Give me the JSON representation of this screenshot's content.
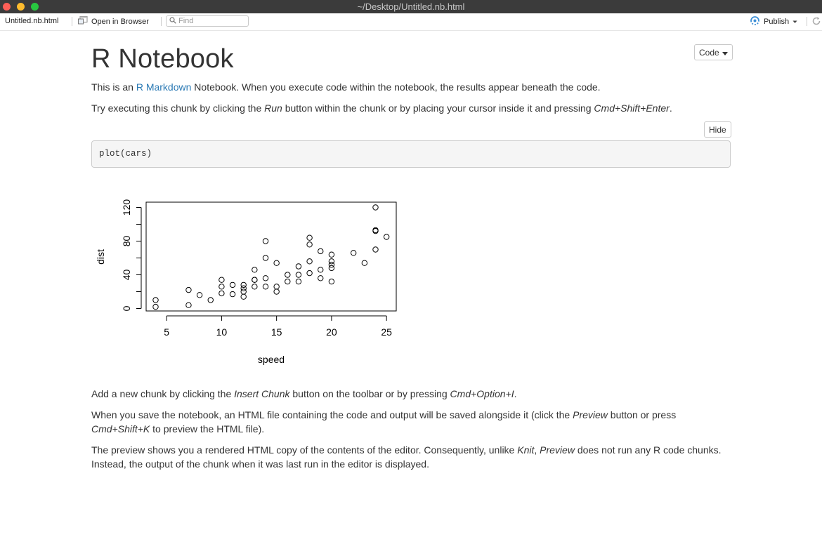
{
  "window": {
    "title": "~/Desktop/Untitled.nb.html"
  },
  "toolbar": {
    "file_label": "Untitled.nb.html",
    "open_label": "Open in Browser",
    "find_placeholder": "Find",
    "publish_label": "Publish"
  },
  "doc": {
    "title": "R Notebook",
    "code_button": "Code",
    "hide_button": "Hide",
    "p1": {
      "before": "This is an ",
      "link": "R Markdown",
      "after": " Notebook. When you execute code within the notebook, the results appear beneath the code."
    },
    "p2": {
      "a": "Try executing this chunk by clicking the ",
      "b": "Run",
      "c": " button within the chunk or by placing your cursor inside it and pressing ",
      "d": "Cmd+Shift+Enter",
      "e": "."
    },
    "code": "plot(cars)",
    "p3": {
      "a": "Add a new chunk by clicking the ",
      "b": "Insert Chunk",
      "c": " button on the toolbar or by pressing ",
      "d": "Cmd+Option+I",
      "e": "."
    },
    "p4": {
      "a": "When you save the notebook, an HTML file containing the code and output will be saved alongside it (click the ",
      "b": "Preview",
      "c": " button or press",
      "d": "Cmd+Shift+K",
      "e": " to preview the HTML file)."
    },
    "p5": {
      "a": "The preview shows you a rendered HTML copy of the contents of the editor. Consequently, unlike ",
      "b": "Knit",
      "c": ", ",
      "d": "Preview",
      "e": " does not run any R code chunks.",
      "f": "Instead, the output of the chunk when it was last run in the editor is displayed."
    }
  },
  "colors": {
    "link": "#2a79b4",
    "titlebar": "#3b3b3b"
  },
  "chart_data": {
    "type": "scatter",
    "title": "",
    "xlabel": "speed",
    "ylabel": "dist",
    "xlim": [
      4,
      25
    ],
    "ylim": [
      0,
      120
    ],
    "xticks": [
      5,
      10,
      15,
      20,
      25
    ],
    "yticks": [
      0,
      40,
      80,
      120
    ],
    "grid": false,
    "x": [
      4,
      4,
      7,
      7,
      8,
      9,
      10,
      10,
      10,
      11,
      11,
      12,
      12,
      12,
      12,
      13,
      13,
      13,
      13,
      14,
      14,
      14,
      14,
      15,
      15,
      15,
      16,
      16,
      17,
      17,
      17,
      18,
      18,
      18,
      18,
      19,
      19,
      19,
      20,
      20,
      20,
      20,
      20,
      22,
      23,
      24,
      24,
      24,
      24,
      25
    ],
    "y": [
      2,
      10,
      4,
      22,
      16,
      10,
      18,
      26,
      34,
      17,
      28,
      14,
      20,
      24,
      28,
      26,
      34,
      34,
      46,
      26,
      36,
      60,
      80,
      20,
      26,
      54,
      32,
      40,
      32,
      40,
      50,
      42,
      56,
      76,
      84,
      36,
      46,
      68,
      32,
      48,
      52,
      56,
      64,
      66,
      54,
      70,
      92,
      93,
      120,
      85
    ]
  }
}
